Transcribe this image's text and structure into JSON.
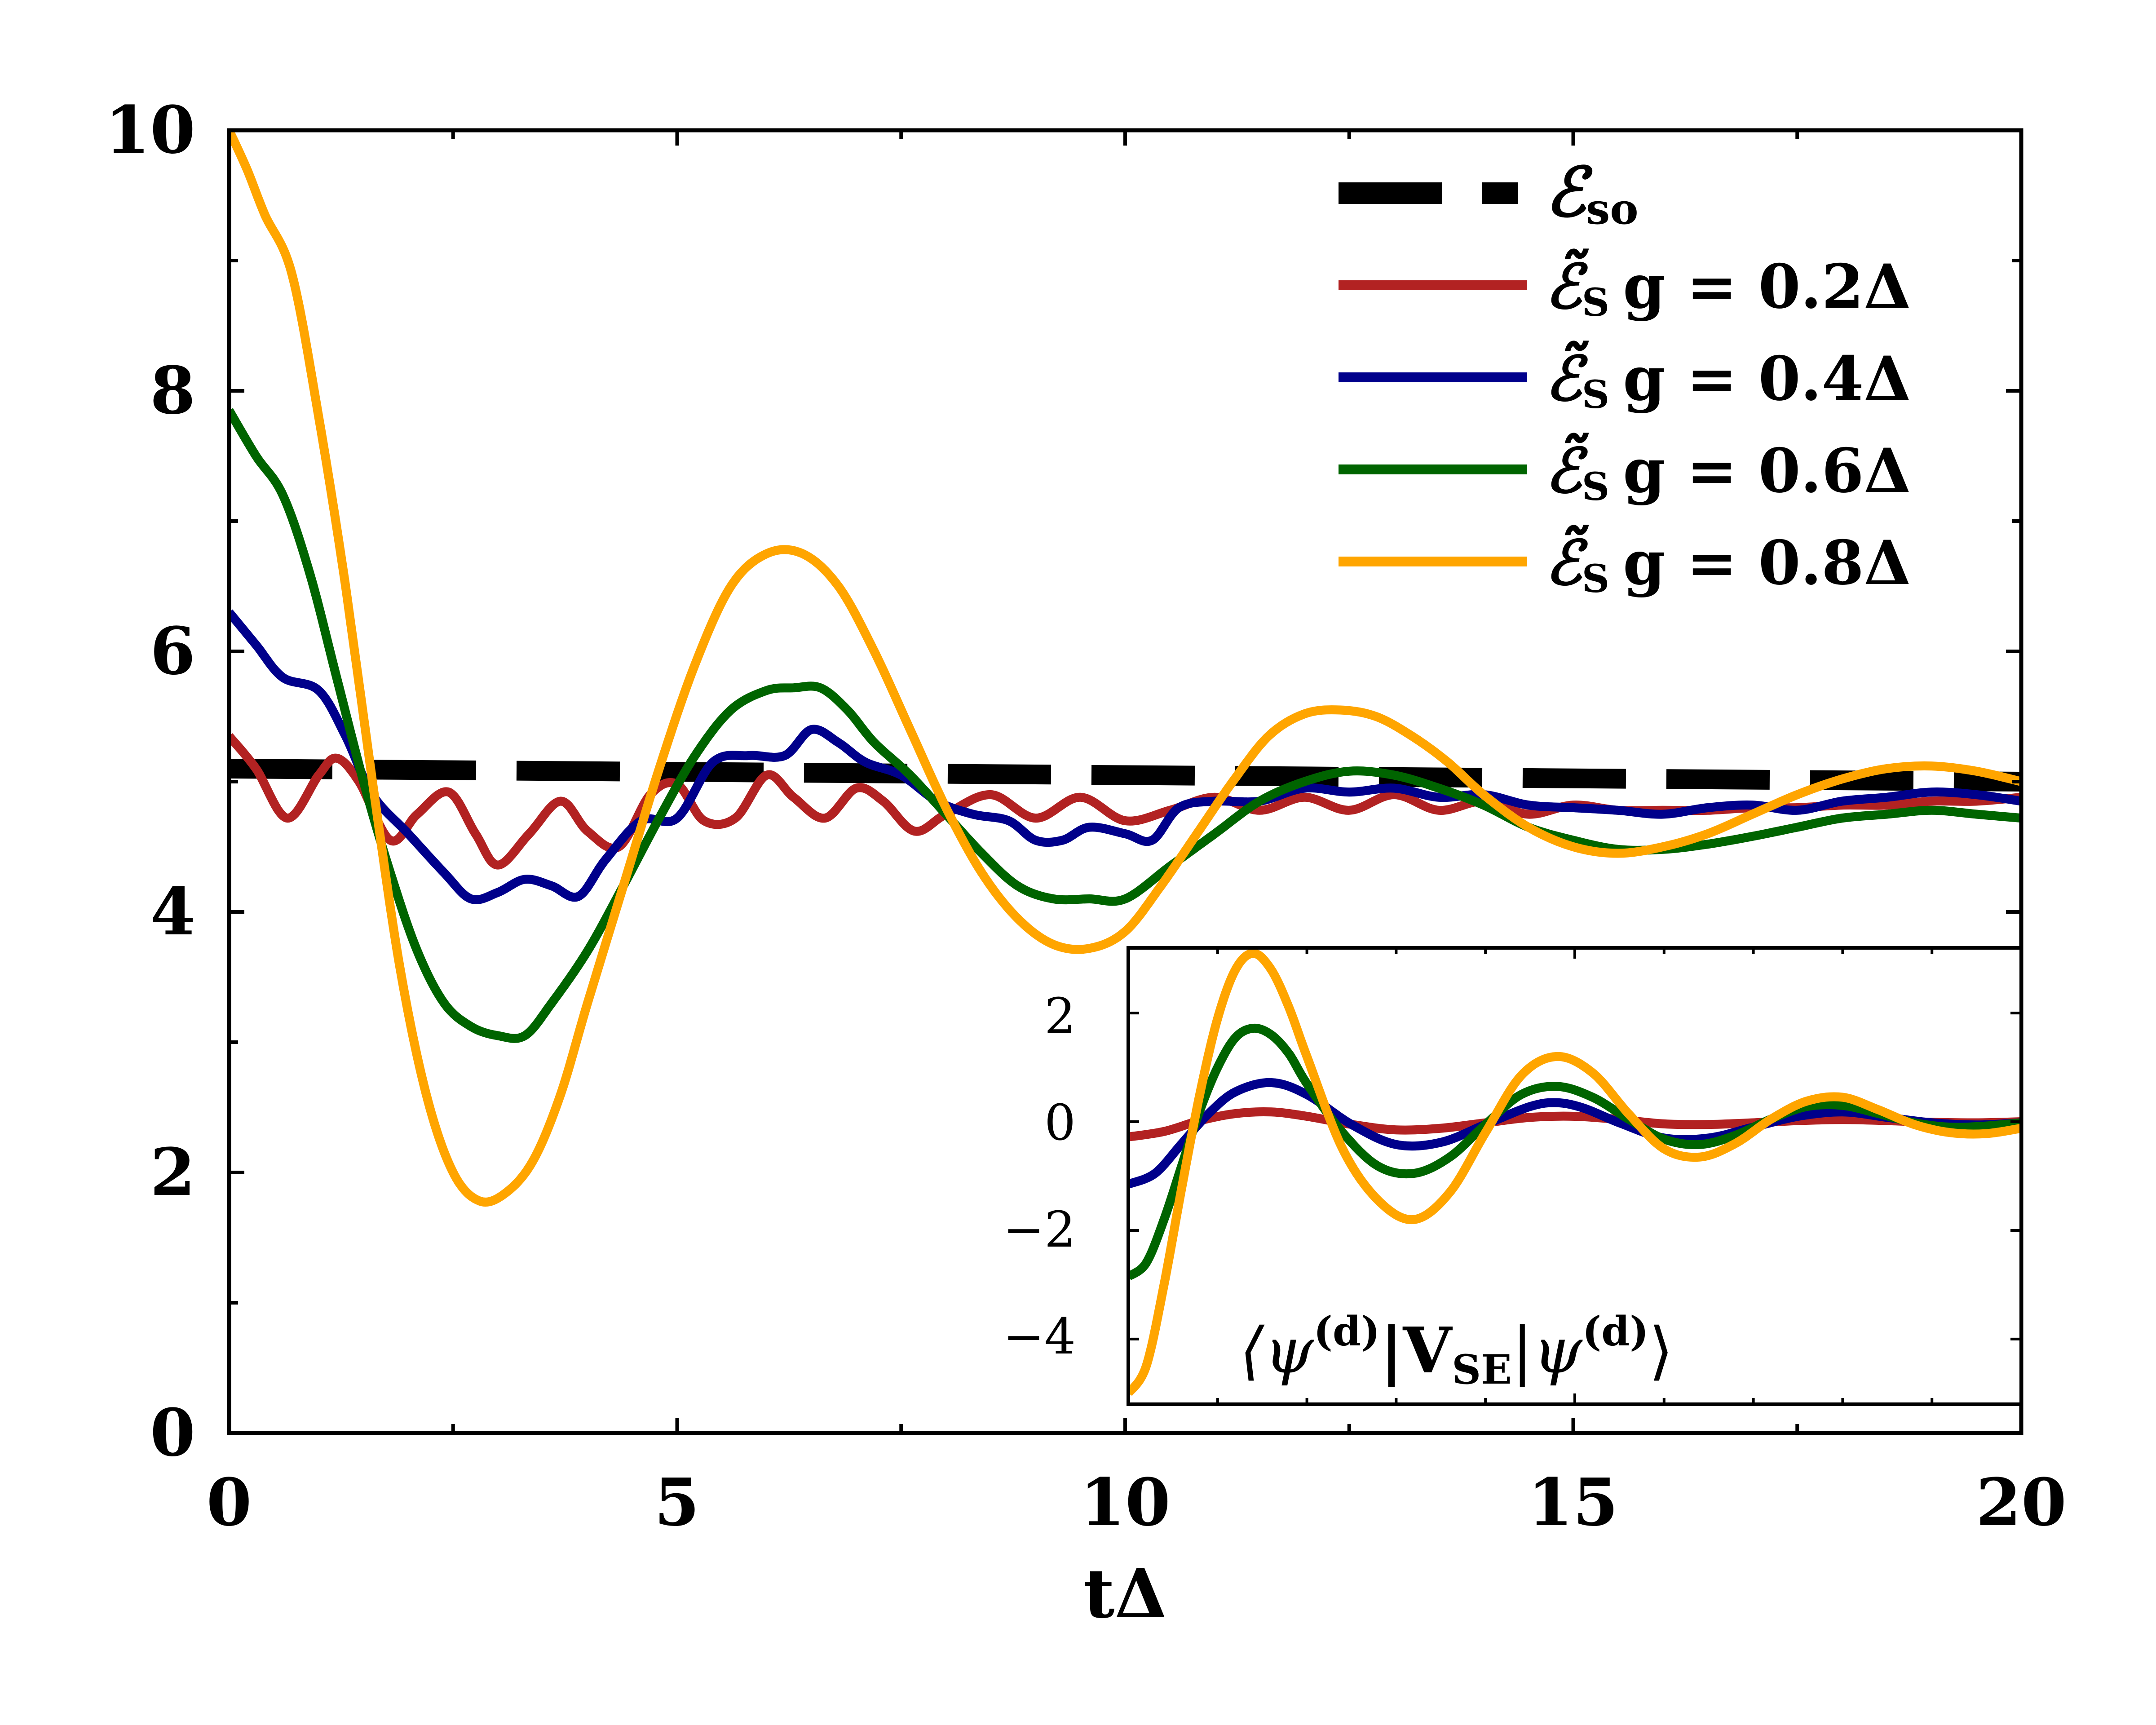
{
  "chart_data": [
    {
      "type": "line",
      "title": "",
      "xlabel": "tΔ",
      "ylabel": "",
      "xlim": [
        0,
        20
      ],
      "ylim": [
        0,
        10
      ],
      "xticks": [
        "0",
        "5",
        "10",
        "15",
        "20"
      ],
      "yticks": [
        "0",
        "2",
        "4",
        "6",
        "8",
        "10"
      ],
      "grid": false,
      "legend_position": "top-right",
      "series": [
        {
          "name": "ℰso",
          "legend_main": "ℰ",
          "legend_sub": "so",
          "style": "dashed",
          "color": "#000000",
          "x": [
            0,
            20
          ],
          "y": [
            5.1,
            5.0
          ]
        },
        {
          "name": "ℰ̃S g = 0.2Δ",
          "legend_main": "ℰ̃",
          "legend_sub": "S",
          "legend_rest": "g = 0.2Δ",
          "color": "#b22222",
          "x": [
            0,
            0.3,
            0.65,
            1.0,
            1.2,
            1.45,
            1.8,
            2.1,
            2.45,
            2.75,
            3.0,
            3.35,
            3.7,
            4.0,
            4.35,
            4.7,
            5.0,
            5.3,
            5.65,
            6.0,
            6.3,
            6.65,
            7.0,
            7.3,
            7.65,
            8.0,
            8.5,
            9.0,
            9.5,
            10.0,
            10.5,
            11.0,
            11.5,
            12.0,
            12.5,
            13.0,
            13.5,
            14.0,
            14.5,
            15.0,
            15.5,
            16.0,
            16.5,
            17.0,
            17.5,
            18.0,
            18.5,
            19.0,
            19.5,
            20.0
          ],
          "y": [
            5.35,
            5.1,
            4.72,
            5.05,
            5.18,
            5.0,
            4.55,
            4.75,
            4.92,
            4.6,
            4.36,
            4.6,
            4.85,
            4.62,
            4.5,
            4.9,
            4.98,
            4.7,
            4.72,
            5.05,
            4.88,
            4.72,
            4.95,
            4.85,
            4.62,
            4.75,
            4.9,
            4.72,
            4.88,
            4.7,
            4.78,
            4.88,
            4.78,
            4.88,
            4.78,
            4.9,
            4.78,
            4.85,
            4.75,
            4.82,
            4.78,
            4.78,
            4.78,
            4.8,
            4.8,
            4.82,
            4.82,
            4.85,
            4.85,
            4.88
          ]
        },
        {
          "name": "ℰ̃S g = 0.4Δ",
          "legend_main": "ℰ̃",
          "legend_sub": "S",
          "legend_rest": "g = 0.4Δ",
          "color": "#00008b",
          "x": [
            0,
            0.3,
            0.6,
            1.0,
            1.3,
            1.6,
            2.0,
            2.4,
            2.7,
            3.0,
            3.3,
            3.6,
            3.9,
            4.2,
            4.6,
            5.0,
            5.4,
            5.8,
            6.2,
            6.5,
            6.8,
            7.1,
            7.5,
            7.9,
            8.3,
            8.7,
            9.0,
            9.3,
            9.6,
            10.0,
            10.3,
            10.6,
            11.0,
            11.5,
            12.0,
            12.5,
            13.0,
            13.5,
            14.0,
            14.5,
            15.0,
            15.5,
            16.0,
            16.5,
            17.0,
            17.5,
            18.0,
            18.5,
            19.0,
            19.5,
            20.0
          ],
          "y": [
            6.3,
            6.05,
            5.8,
            5.7,
            5.35,
            4.9,
            4.6,
            4.3,
            4.1,
            4.15,
            4.25,
            4.2,
            4.12,
            4.4,
            4.7,
            4.72,
            5.15,
            5.2,
            5.2,
            5.4,
            5.3,
            5.15,
            5.05,
            4.85,
            4.75,
            4.7,
            4.55,
            4.55,
            4.65,
            4.6,
            4.55,
            4.8,
            4.85,
            4.85,
            4.95,
            4.92,
            4.95,
            4.88,
            4.9,
            4.82,
            4.8,
            4.78,
            4.75,
            4.8,
            4.82,
            4.78,
            4.85,
            4.88,
            4.92,
            4.9,
            4.85
          ]
        },
        {
          "name": "ℰ̃S g = 0.6Δ",
          "legend_main": "ℰ̃",
          "legend_sub": "S",
          "legend_rest": "g = 0.6Δ",
          "color": "#006400",
          "x": [
            0,
            0.3,
            0.6,
            0.9,
            1.2,
            1.5,
            1.8,
            2.1,
            2.4,
            2.7,
            3.0,
            3.3,
            3.6,
            4.0,
            4.4,
            4.8,
            5.2,
            5.6,
            6.0,
            6.3,
            6.6,
            6.9,
            7.2,
            7.6,
            8.0,
            8.4,
            8.8,
            9.2,
            9.6,
            10.0,
            10.5,
            11.0,
            11.5,
            12.0,
            12.5,
            13.0,
            13.5,
            14.0,
            14.5,
            15.0,
            15.5,
            16.0,
            16.5,
            17.0,
            17.5,
            18.0,
            18.5,
            19.0,
            19.5,
            20.0
          ],
          "y": [
            7.85,
            7.5,
            7.2,
            6.6,
            5.8,
            5.0,
            4.3,
            3.7,
            3.3,
            3.12,
            3.05,
            3.05,
            3.3,
            3.7,
            4.2,
            4.72,
            5.2,
            5.55,
            5.7,
            5.72,
            5.72,
            5.55,
            5.3,
            5.05,
            4.75,
            4.45,
            4.2,
            4.1,
            4.1,
            4.1,
            4.35,
            4.6,
            4.85,
            5.0,
            5.08,
            5.05,
            4.95,
            4.82,
            4.65,
            4.55,
            4.48,
            4.48,
            4.52,
            4.58,
            4.65,
            4.72,
            4.75,
            4.78,
            4.75,
            4.72
          ]
        },
        {
          "name": "ℰ̃S g = 0.8Δ",
          "legend_main": "ℰ̃",
          "legend_sub": "S",
          "legend_rest": "g = 0.8Δ",
          "color": "#ffa500",
          "x": [
            0,
            0.2,
            0.4,
            0.7,
            1.0,
            1.3,
            1.6,
            1.9,
            2.2,
            2.5,
            2.8,
            3.1,
            3.4,
            3.7,
            4.0,
            4.4,
            4.8,
            5.2,
            5.6,
            6.0,
            6.4,
            6.8,
            7.2,
            7.6,
            8.0,
            8.4,
            8.8,
            9.2,
            9.6,
            10.0,
            10.4,
            10.8,
            11.2,
            11.6,
            12.0,
            12.4,
            12.8,
            13.2,
            13.6,
            14.0,
            14.5,
            15.0,
            15.5,
            16.0,
            16.5,
            17.0,
            17.5,
            18.0,
            18.5,
            19.0,
            19.5,
            20.0
          ],
          "y": [
            10.0,
            9.7,
            9.35,
            8.9,
            7.8,
            6.5,
            5.0,
            3.6,
            2.6,
            2.0,
            1.78,
            1.85,
            2.1,
            2.6,
            3.3,
            4.2,
            5.1,
            5.9,
            6.5,
            6.75,
            6.75,
            6.5,
            6.0,
            5.4,
            4.8,
            4.3,
            3.95,
            3.75,
            3.72,
            3.85,
            4.2,
            4.6,
            5.0,
            5.35,
            5.52,
            5.55,
            5.5,
            5.35,
            5.15,
            4.9,
            4.65,
            4.5,
            4.45,
            4.5,
            4.6,
            4.75,
            4.9,
            5.02,
            5.1,
            5.12,
            5.08,
            5.0
          ]
        }
      ]
    },
    {
      "type": "line",
      "title": "⟨ψ(d)|VSE|ψ(d)⟩",
      "annotation": {
        "bra_l": "⟨ψ",
        "sup1": "(d)",
        "mid": "|V",
        "sub": "SE",
        "mid2": "|ψ",
        "sup2": "(d)",
        "ket_r": "⟩"
      },
      "xlabel": "",
      "ylabel": "",
      "xlim": [
        10,
        20
      ],
      "ylim": [
        -5.2,
        3.2
      ],
      "xticks": [],
      "yticks": [
        "2",
        "0",
        "−2",
        "−4"
      ],
      "grid": false,
      "series": [
        {
          "name": "g = 0.2Δ",
          "color": "#b22222",
          "x": [
            10.0,
            10.4,
            10.8,
            11.2,
            11.6,
            12.0,
            12.5,
            13.0,
            13.5,
            14.0,
            14.5,
            15.0,
            15.5,
            16.0,
            16.5,
            17.0,
            17.5,
            18.0,
            18.5,
            19.0,
            19.5,
            20.0
          ],
          "y": [
            -0.28,
            -0.18,
            0.02,
            0.15,
            0.18,
            0.1,
            -0.05,
            -0.15,
            -0.12,
            -0.02,
            0.08,
            0.1,
            0.04,
            -0.04,
            -0.05,
            -0.02,
            0.02,
            0.04,
            0.02,
            -0.01,
            -0.02,
            0.0
          ]
        },
        {
          "name": "g = 0.4Δ",
          "color": "#00008b",
          "x": [
            10.0,
            10.3,
            10.6,
            10.9,
            11.2,
            11.6,
            12.0,
            12.5,
            13.0,
            13.5,
            14.0,
            14.5,
            14.8,
            15.1,
            15.5,
            16.0,
            16.5,
            17.0,
            17.5,
            18.0,
            18.5,
            19.0,
            19.5,
            20.0
          ],
          "y": [
            -1.15,
            -0.95,
            -0.4,
            0.15,
            0.55,
            0.72,
            0.5,
            -0.05,
            -0.42,
            -0.38,
            -0.05,
            0.28,
            0.35,
            0.25,
            -0.02,
            -0.3,
            -0.3,
            -0.1,
            0.1,
            0.18,
            0.08,
            -0.02,
            -0.06,
            -0.02
          ]
        },
        {
          "name": "g = 0.6Δ",
          "color": "#006400",
          "x": [
            10.0,
            10.2,
            10.4,
            10.6,
            10.8,
            11.0,
            11.2,
            11.4,
            11.6,
            11.8,
            12.0,
            12.4,
            12.8,
            13.2,
            13.6,
            14.0,
            14.4,
            14.8,
            15.2,
            15.6,
            16.0,
            16.4,
            16.8,
            17.2,
            17.6,
            18.0,
            18.4,
            18.8,
            19.2,
            19.6,
            20.0
          ],
          "y": [
            -2.85,
            -2.6,
            -1.8,
            -0.8,
            0.2,
            1.0,
            1.55,
            1.72,
            1.6,
            1.25,
            0.7,
            -0.2,
            -0.82,
            -0.95,
            -0.65,
            -0.05,
            0.5,
            0.65,
            0.45,
            0.05,
            -0.32,
            -0.42,
            -0.25,
            0.05,
            0.28,
            0.3,
            0.15,
            -0.02,
            -0.1,
            -0.08,
            -0.02
          ]
        },
        {
          "name": "g = 0.8Δ",
          "color": "#ffa500",
          "x": [
            10.0,
            10.2,
            10.4,
            10.6,
            10.8,
            11.0,
            11.2,
            11.4,
            11.6,
            11.8,
            12.0,
            12.4,
            12.8,
            13.2,
            13.6,
            14.0,
            14.4,
            14.8,
            15.2,
            15.6,
            16.0,
            16.4,
            16.8,
            17.2,
            17.6,
            18.0,
            18.4,
            18.8,
            19.2,
            19.6,
            20.0
          ],
          "y": [
            -5.0,
            -4.5,
            -3.0,
            -1.2,
            0.5,
            1.9,
            2.8,
            3.1,
            2.8,
            2.1,
            1.2,
            -0.5,
            -1.45,
            -1.8,
            -1.3,
            -0.2,
            0.85,
            1.2,
            0.9,
            0.15,
            -0.5,
            -0.65,
            -0.4,
            0.05,
            0.38,
            0.45,
            0.22,
            -0.05,
            -0.2,
            -0.22,
            -0.12
          ]
        }
      ]
    }
  ]
}
